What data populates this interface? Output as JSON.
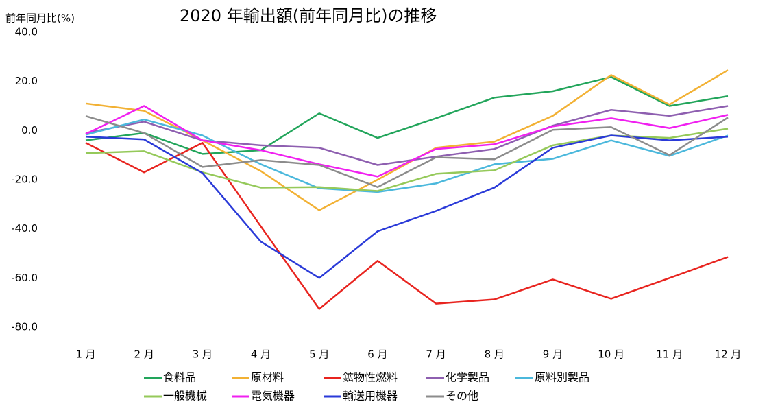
{
  "chart_data": {
    "type": "line",
    "title": "2020 年輸出額(前年同月比)の推移",
    "y_label": "前年同月比(%)",
    "categories": [
      "1 月",
      "2 月",
      "3 月",
      "4 月",
      "5 月",
      "6 月",
      "7 月",
      "8 月",
      "9 月",
      "10 月",
      "11 月",
      "12 月"
    ],
    "ylim": [
      -80,
      40
    ],
    "yticks": [
      {
        "value": 40,
        "label": "40.0"
      },
      {
        "value": 20,
        "label": "20.0"
      },
      {
        "value": 0,
        "label": "0.0"
      },
      {
        "value": -20,
        "label": "-20.0"
      },
      {
        "value": -40,
        "label": "-40.0"
      },
      {
        "value": -60,
        "label": "-60.0"
      },
      {
        "value": -80,
        "label": "-80.0"
      }
    ],
    "grid": false,
    "legend": "bottom",
    "series": [
      {
        "name": "食料品",
        "color": "#22a55b",
        "values": [
          -4,
          -1,
          -9.5,
          -8,
          7,
          -3,
          5,
          13.4,
          16,
          21.8,
          10,
          14
        ]
      },
      {
        "name": "原材料",
        "color": "#f2b134",
        "values": [
          11,
          8,
          -4,
          -16.5,
          -32.4,
          -20,
          -7,
          -4.5,
          6,
          22.6,
          10.6,
          24.6
        ]
      },
      {
        "name": "鉱物性燃料",
        "color": "#e8241f",
        "values": [
          -5,
          -17,
          -5,
          -39,
          -72.6,
          -53,
          -70.4,
          -68.7,
          -60.6,
          -68.4,
          -60,
          -51.4
        ]
      },
      {
        "name": "化学製品",
        "color": "#8e5fb0",
        "values": [
          -1,
          3.6,
          -4,
          -6,
          -7,
          -14,
          -10.6,
          -7.5,
          2,
          8.4,
          6,
          10
        ]
      },
      {
        "name": "原料別製品",
        "color": "#4bb8dc",
        "values": [
          -1.7,
          4.5,
          -2,
          -13.7,
          -23.5,
          -25,
          -21.5,
          -13.7,
          -11.5,
          -4,
          -10.3,
          -2
        ]
      },
      {
        "name": "一般機械",
        "color": "#95c95a",
        "values": [
          -9.2,
          -8.4,
          -17,
          -23.2,
          -23,
          -24.6,
          -17.6,
          -16.2,
          -6,
          -2,
          -3,
          0.8
        ]
      },
      {
        "name": "電気機器",
        "color": "#f020f0",
        "values": [
          -1.4,
          10,
          -4,
          -8,
          -13.7,
          -18.7,
          -7.5,
          -5.6,
          1.7,
          5,
          1,
          6.4
        ]
      },
      {
        "name": "輸送用機器",
        "color": "#2a3ad8",
        "values": [
          -2.5,
          -3.6,
          -17.3,
          -45.2,
          -60,
          -41,
          -32.7,
          -23.2,
          -7,
          -2,
          -4,
          -2.5
        ]
      },
      {
        "name": "その他",
        "color": "#8c8c8c",
        "values": [
          5.9,
          -1,
          -14.8,
          -12,
          -14,
          -23,
          -10.9,
          -11.7,
          0.3,
          1.4,
          -10,
          5.3
        ]
      }
    ]
  }
}
